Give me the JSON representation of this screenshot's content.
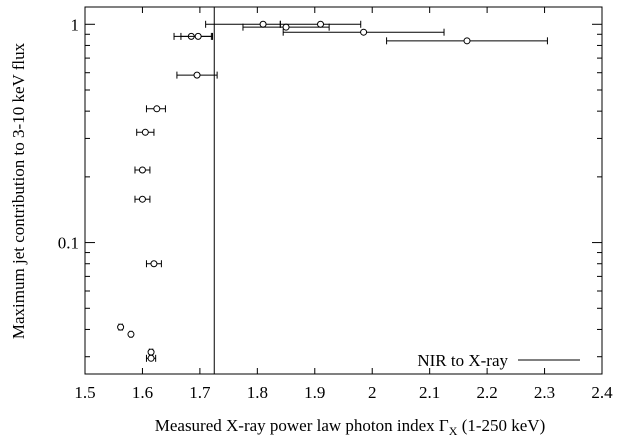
{
  "chart_data": {
    "type": "scatter",
    "xlabel_main": "Measured X-ray power law photon index Γ",
    "xlabel_sub": "X",
    "xlabel_suffix": " (1-250 keV)",
    "ylabel": "Maximum jet contribution to 3-10 keV flux",
    "x_ticks": [
      "1.5",
      "1.6",
      "1.7",
      "1.8",
      "1.9",
      "2",
      "2.1",
      "2.2",
      "2.3",
      "2.4"
    ],
    "y_ticks": [
      "0.1",
      "1"
    ],
    "xlim": [
      1.5,
      2.4
    ],
    "ylim": [
      0.025,
      1.2
    ],
    "y_scale": "log",
    "grid": false,
    "legend": {
      "placement": "bottom-right",
      "label": "NIR to X-ray",
      "style": "line"
    },
    "vertical_line_x": 1.725,
    "points": [
      {
        "x": 1.685,
        "y": 0.88,
        "xerr": [
          0.03,
          0.035
        ]
      },
      {
        "x": 1.697,
        "y": 0.88,
        "xerr": [
          0.03,
          0.025
        ]
      },
      {
        "x": 1.81,
        "y": 1.0,
        "xerr": [
          0.1,
          0.03
        ]
      },
      {
        "x": 1.85,
        "y": 0.97,
        "xerr": [
          0.075,
          0.075
        ]
      },
      {
        "x": 1.91,
        "y": 1.0,
        "xerr": [
          0.07,
          0.07
        ]
      },
      {
        "x": 1.985,
        "y": 0.92,
        "xerr": [
          0.14,
          0.14
        ]
      },
      {
        "x": 2.165,
        "y": 0.84,
        "xerr": [
          0.14,
          0.14
        ]
      },
      {
        "x": 1.695,
        "y": 0.585,
        "xerr": [
          0.035,
          0.035
        ]
      },
      {
        "x": 1.625,
        "y": 0.41,
        "xerr": [
          0.018,
          0.015
        ]
      },
      {
        "x": 1.605,
        "y": 0.32,
        "xerr": [
          0.015,
          0.015
        ]
      },
      {
        "x": 1.6,
        "y": 0.215,
        "xerr": [
          0.013,
          0.013
        ]
      },
      {
        "x": 1.6,
        "y": 0.158,
        "xerr": [
          0.013,
          0.013
        ]
      },
      {
        "x": 1.62,
        "y": 0.08,
        "xerr": [
          0.013,
          0.013
        ]
      },
      {
        "x": 1.562,
        "y": 0.041,
        "xerr": [
          0.003,
          0.003
        ]
      },
      {
        "x": 1.58,
        "y": 0.038,
        "xerr": [
          0.002,
          0.002
        ]
      },
      {
        "x": 1.615,
        "y": 0.0315,
        "xerr": [
          0.003,
          0.003
        ]
      },
      {
        "x": 1.615,
        "y": 0.0295,
        "xerr": [
          0.008,
          0.008
        ]
      }
    ]
  }
}
